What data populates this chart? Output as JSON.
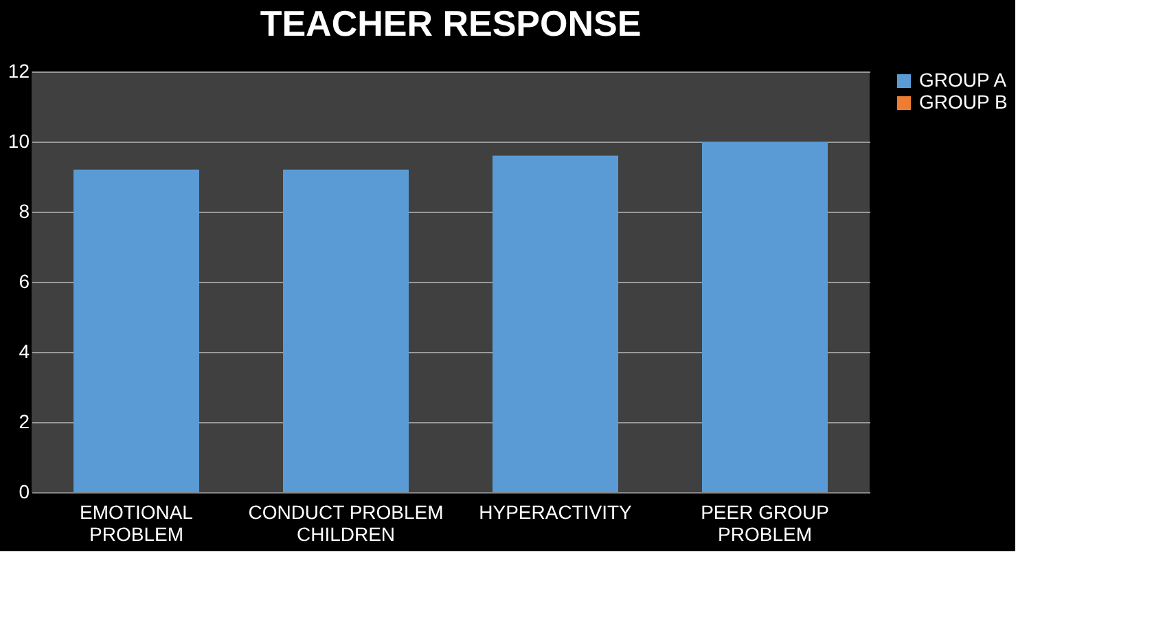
{
  "chart_data": {
    "type": "bar",
    "title": "TEACHER RESPONSE",
    "categories": [
      "EMOTIONAL PROBLEM",
      "CONDUCT PROBLEM CHILDREN",
      "HYPERACTIVITY",
      "PEER GROUP PROBLEM"
    ],
    "series": [
      {
        "name": "GROUP A",
        "color": "#5b9bd5",
        "values": [
          9.2,
          9.2,
          9.6,
          10
        ]
      },
      {
        "name": "GROUP B",
        "color": "#ed7d31",
        "values": [
          null,
          null,
          null,
          null
        ]
      }
    ],
    "ylim": [
      0,
      12
    ],
    "yticks": [
      0,
      2,
      4,
      6,
      8,
      10,
      12
    ],
    "grid": "y",
    "legend": "right"
  }
}
